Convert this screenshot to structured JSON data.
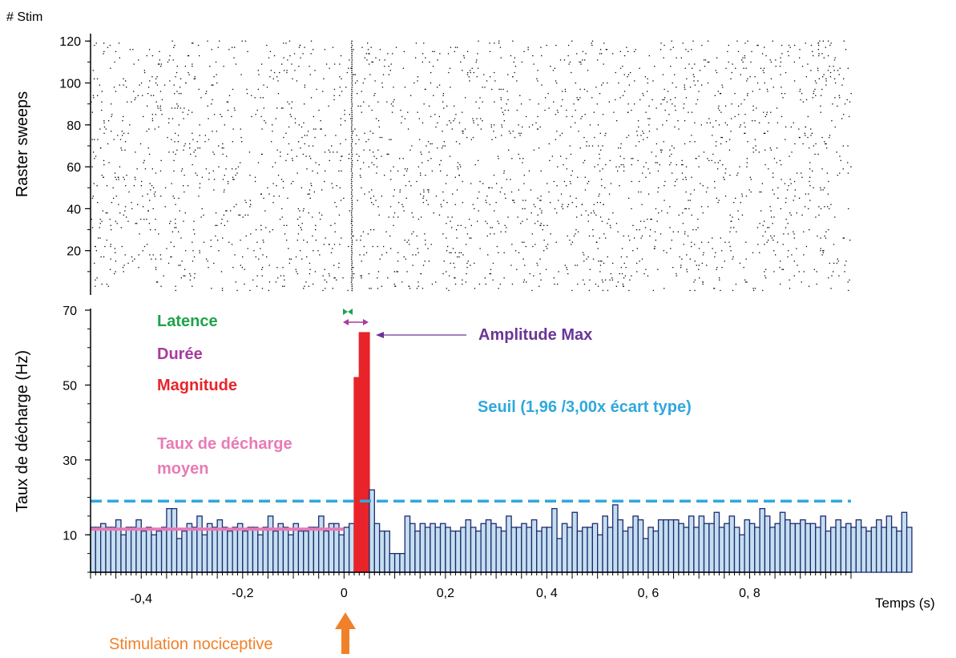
{
  "chart_data": [
    {
      "type": "scatter",
      "name": "raster",
      "y_corner_label": "# Stim",
      "ylabel": "Raster sweeps",
      "ylim": [
        0,
        122
      ],
      "yticks": [
        20,
        40,
        60,
        80,
        100,
        120
      ],
      "xlim": [
        -0.5,
        1.0
      ],
      "sweeps": 120,
      "background_rate_per_sweep": 22,
      "stimulus_aligned_spike_time": 0.015
    },
    {
      "type": "bar",
      "name": "psth",
      "ylabel": "Taux de décharge (Hz)",
      "xlabel": "Temps (s)",
      "xlim": [
        -0.5,
        1.0
      ],
      "ylim": [
        0,
        70
      ],
      "yticks": [
        10,
        30,
        50,
        70
      ],
      "xticks": [
        {
          "value": -0.4,
          "label": "-0,4"
        },
        {
          "value": -0.2,
          "label": "-0,2"
        },
        {
          "value": 0,
          "label": "0"
        },
        {
          "value": 0.2,
          "label": "0,2"
        },
        {
          "value": 0.4,
          "label": "0, 4"
        },
        {
          "value": 0.6,
          "label": "0, 6"
        },
        {
          "value": 0.8,
          "label": "0, 8"
        }
      ],
      "bin_start": -0.5,
      "bin_width": 0.01,
      "values": [
        12,
        12,
        13,
        12,
        12,
        14,
        10,
        12,
        12,
        14,
        11,
        12,
        10,
        11,
        12,
        17,
        17,
        9,
        11,
        13,
        12,
        15,
        10,
        13,
        12,
        14,
        12,
        11,
        12,
        13,
        11,
        12,
        12,
        10,
        12,
        15,
        11,
        13,
        12,
        10,
        13,
        11,
        11,
        12,
        12,
        15,
        11,
        13,
        13,
        10,
        12,
        13,
        52,
        64,
        64,
        22,
        13,
        11,
        11,
        5,
        5,
        5,
        15,
        13,
        11,
        13,
        12,
        13,
        12,
        13,
        12,
        11,
        11,
        12,
        14,
        12,
        11,
        13,
        14,
        13,
        12,
        11,
        15,
        12,
        12,
        13,
        12,
        14,
        11,
        12,
        12,
        17,
        9,
        13,
        12,
        16,
        11,
        12,
        12,
        13,
        10,
        15,
        12,
        18,
        14,
        11,
        12,
        15,
        14,
        9,
        12,
        11,
        14,
        14,
        14,
        14,
        13,
        12,
        15,
        12,
        15,
        13,
        13,
        16,
        12,
        13,
        15,
        12,
        10,
        14,
        13,
        12,
        17,
        15,
        12,
        13,
        16,
        14,
        13,
        13,
        14,
        13,
        13,
        12,
        15,
        11,
        12,
        14,
        12,
        13,
        12,
        14,
        12,
        11,
        12,
        14,
        12,
        15,
        12,
        11,
        16,
        12
      ],
      "response_bins": [
        52,
        53,
        54
      ],
      "threshold": 19,
      "mean_rate": 11.5,
      "colors": {
        "bar_fill": "#c5dff0",
        "bar_edge": "#1c2a6e",
        "response": "#e8242a",
        "threshold": "#2fa8dc",
        "mean_rate": "#e87ab6",
        "latency": "#1fa34a",
        "duration": "#a83c9c",
        "amplitude": "#6a3596",
        "stimulus": "#f0812a"
      }
    }
  ],
  "annotations": {
    "latence": "Latence",
    "duree": "Durée",
    "magnitude": "Magnitude",
    "taux_line1": "Taux de décharge",
    "taux_line2": "moyen",
    "amplitude": "Amplitude Max",
    "seuil": "Seuil (1,96 /3,00x écart type)",
    "stimulation": "Stimulation nociceptive"
  }
}
